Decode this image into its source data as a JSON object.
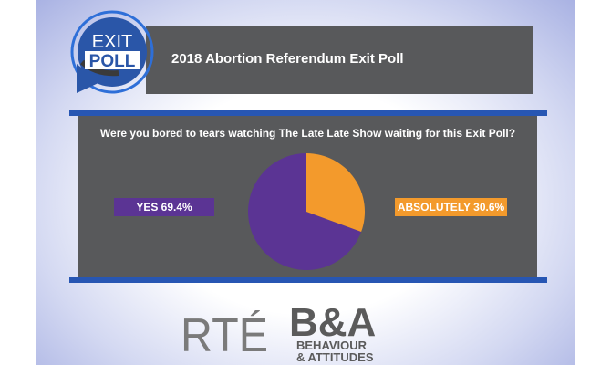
{
  "logo": {
    "line1": "EXIT",
    "line2": "POLL"
  },
  "header": {
    "title": "2018 Abortion Referendum Exit Poll"
  },
  "chart_data": {
    "type": "pie",
    "title": "Were you bored to tears watching The Late Late Show waiting for this Exit Poll?",
    "categories": [
      "YES",
      "ABSOLUTELY"
    ],
    "values": [
      69.4,
      30.6
    ],
    "labels": [
      "YES 69.4%",
      "ABSOLUTELY 30.6%"
    ],
    "colors": [
      "#5b3494",
      "#f39a2c"
    ]
  },
  "footer": {
    "rte": "RTÉ",
    "ba_mark": "B&A",
    "ba_line1": "BEHAVIOUR",
    "ba_line2": "& ATTITUDES"
  }
}
